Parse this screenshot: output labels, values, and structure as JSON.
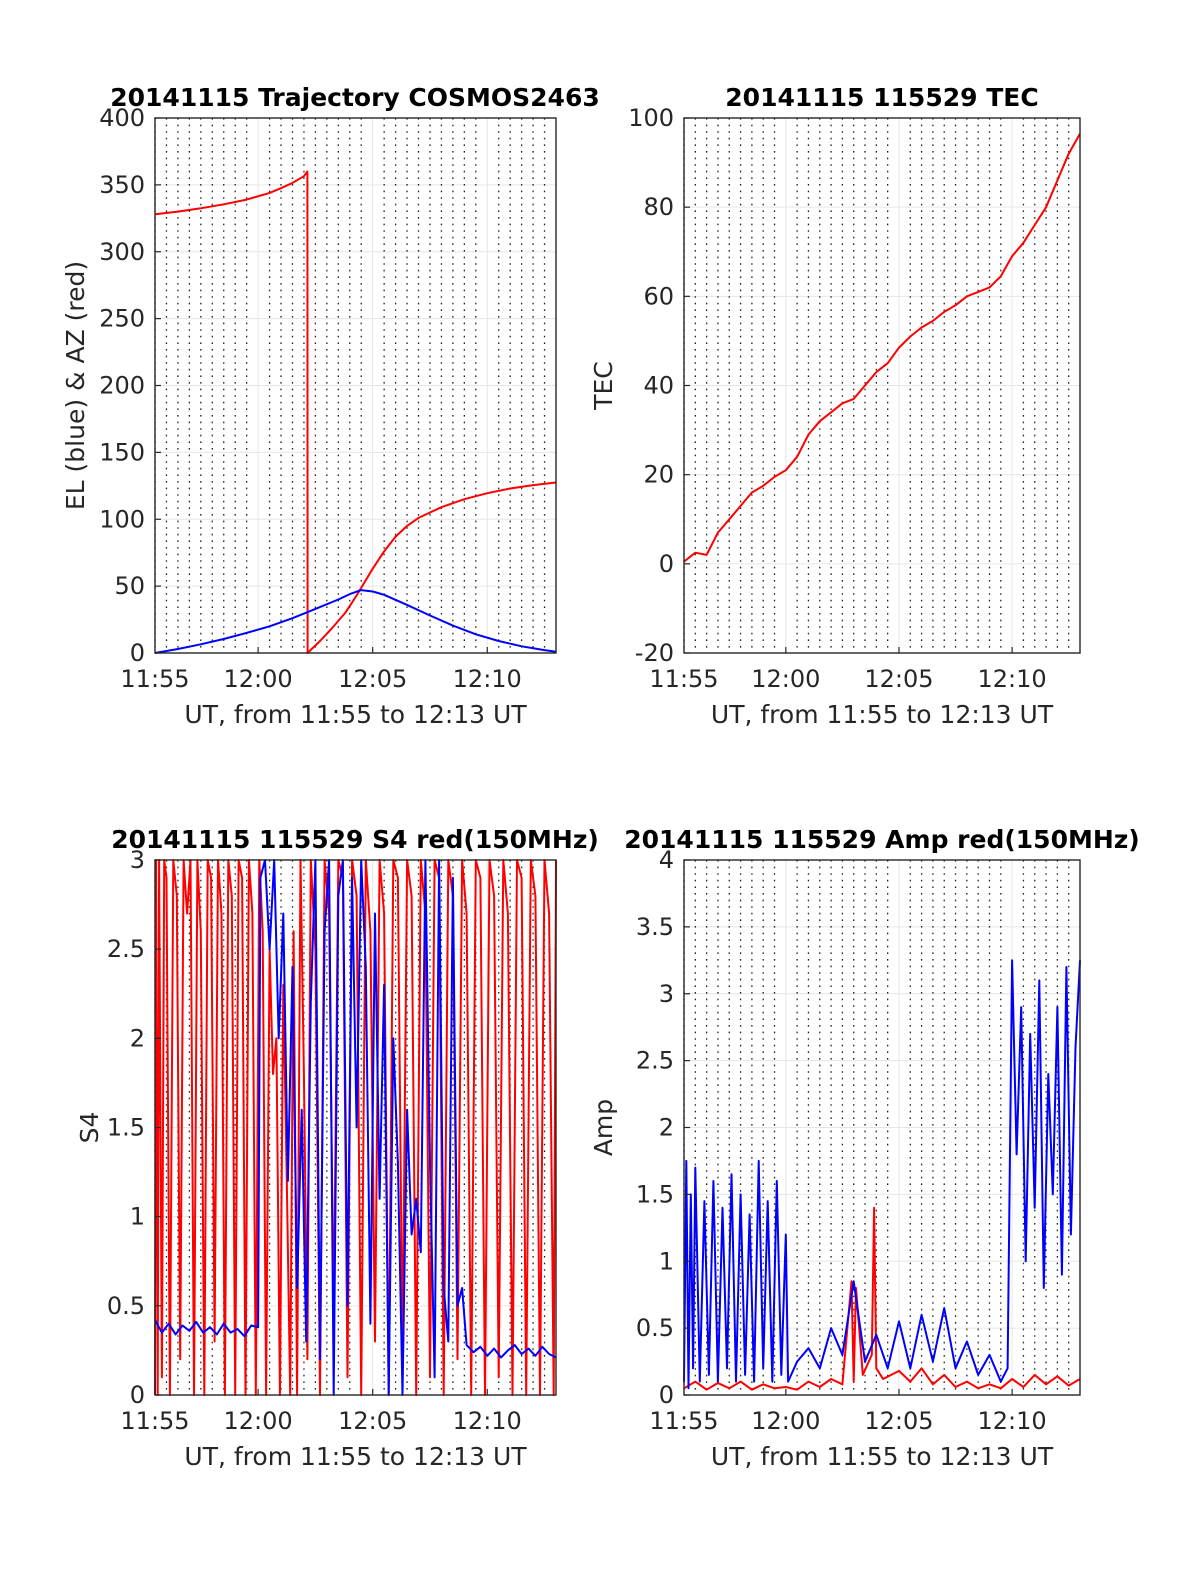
{
  "chart_data": [
    {
      "type": "line",
      "title": "20141115 Trajectory COSMOS2463",
      "xlabel": "UT, from 11:55 to 12:13 UT",
      "ylabel": "EL (blue) & AZ (red)",
      "xlim_min": [
        715.5,
        733.0
      ],
      "ylim": [
        0,
        400
      ],
      "xticks_min": [
        715,
        720,
        725,
        730
      ],
      "xtick_labels": [
        "11:55",
        "12:00",
        "12:05",
        "12:10"
      ],
      "yticks": [
        0,
        50,
        100,
        150,
        200,
        250,
        300,
        350,
        400
      ],
      "ytick_labels": [
        "0",
        "50",
        "100",
        "150",
        "200",
        "250",
        "300",
        "350",
        "400"
      ],
      "grid": true,
      "series": [
        {
          "color": "#ff0000",
          "x_min": [
            715.5,
            716.5,
            717.5,
            718.5,
            719.5,
            720.5,
            721.0,
            721.5,
            722.0,
            722.15,
            722.16,
            722.7,
            723.2,
            723.8,
            724.3,
            725.0,
            725.5,
            726.0,
            726.5,
            727.0,
            728.0,
            729.0,
            730.0,
            731.0,
            732.0,
            733.0
          ],
          "values": [
            328,
            330,
            332.5,
            335.5,
            339,
            344,
            347.5,
            351.5,
            356.5,
            360,
            0,
            9,
            18,
            30,
            43,
            63,
            76,
            87,
            95,
            101,
            109,
            115,
            119.5,
            123,
            125.5,
            127.5
          ]
        },
        {
          "color": "#0000ff",
          "x_min": [
            715.5,
            716.5,
            717.5,
            718.5,
            719.5,
            720.5,
            721.5,
            722.5,
            723.5,
            724.0,
            724.5,
            725.0,
            725.5,
            726.5,
            727.5,
            728.5,
            729.5,
            730.5,
            731.5,
            732.5,
            733.0
          ],
          "values": [
            0,
            3,
            6.5,
            10.5,
            15,
            20,
            26,
            33,
            40,
            44,
            47,
            46,
            43.5,
            36,
            28,
            20.5,
            14,
            9,
            5,
            2.2,
            1
          ]
        }
      ]
    },
    {
      "type": "line",
      "title": "20141115 115529 TEC",
      "xlabel": "UT, from 11:55 to 12:13 UT",
      "ylabel": "TEC",
      "xlim_min": [
        715.5,
        733.0
      ],
      "ylim": [
        -20,
        100
      ],
      "xticks_min": [
        715,
        720,
        725,
        730
      ],
      "xtick_labels": [
        "11:55",
        "12:00",
        "12:05",
        "12:10"
      ],
      "yticks": [
        -20,
        0,
        20,
        40,
        60,
        80,
        100
      ],
      "ytick_labels": [
        "-20",
        "0",
        "20",
        "40",
        "60",
        "80",
        "100"
      ],
      "grid": true,
      "series": [
        {
          "color": "#ff0000",
          "x_min": [
            715.5,
            716.0,
            716.5,
            717.0,
            717.5,
            718.0,
            718.5,
            719.0,
            719.5,
            720.0,
            720.5,
            721.0,
            721.5,
            722.0,
            722.5,
            723.0,
            723.5,
            724.0,
            724.5,
            725.0,
            725.5,
            726.0,
            726.5,
            727.0,
            727.5,
            728.0,
            728.5,
            729.0,
            729.5,
            730.0,
            730.5,
            731.0,
            731.5,
            732.0,
            732.5,
            733.0
          ],
          "values": [
            0.5,
            2.5,
            2.0,
            7.0,
            10.0,
            13.0,
            16.0,
            17.5,
            19.5,
            21.0,
            24.0,
            29.0,
            32.0,
            34.0,
            36.0,
            37.0,
            40.0,
            43.0,
            45.0,
            48.5,
            51.0,
            53.0,
            54.5,
            56.5,
            58.0,
            60.0,
            61.0,
            62.0,
            64.5,
            69.0,
            72.0,
            76.0,
            80.0,
            86.0,
            92.0,
            96.5
          ]
        }
      ]
    },
    {
      "type": "line",
      "title": "20141115 115529 S4 red(150MHz)",
      "xlabel": "UT, from 11:55 to 12:13 UT",
      "ylabel": "S4",
      "xlim_min": [
        715.5,
        733.0
      ],
      "ylim": [
        0,
        3
      ],
      "xticks_min": [
        715,
        720,
        725,
        730
      ],
      "xtick_labels": [
        "11:55",
        "12:00",
        "12:05",
        "12:10"
      ],
      "yticks": [
        0,
        0.5,
        1,
        1.5,
        2,
        2.5,
        3
      ],
      "ytick_labels": [
        "0",
        "0.5",
        "1",
        "1.5",
        "2",
        "2.5",
        "3"
      ],
      "grid": true,
      "series": [
        {
          "color": "#ff0000",
          "x_min": [
            715.5,
            715.55,
            715.62,
            715.68,
            715.8,
            715.9,
            716.0,
            716.15,
            716.3,
            716.45,
            716.6,
            716.75,
            716.9,
            717.05,
            717.2,
            717.35,
            717.5,
            717.65,
            717.8,
            717.95,
            718.1,
            718.25,
            718.4,
            718.55,
            718.7,
            718.85,
            719.0,
            719.15,
            719.3,
            719.45,
            719.6,
            719.75,
            719.9,
            720.05,
            720.2,
            720.35,
            720.5,
            720.65,
            720.8,
            720.95,
            721.1,
            721.25,
            721.4,
            721.55,
            721.7,
            721.85,
            722.0,
            722.15,
            722.3,
            722.5,
            722.7,
            722.9,
            723.1,
            723.3,
            723.5,
            723.7,
            723.9,
            724.1,
            724.3,
            724.5,
            724.7,
            724.9,
            725.1,
            725.3,
            725.5,
            725.7,
            725.9,
            726.1,
            726.3,
            726.5,
            726.7,
            726.9,
            727.1,
            727.3,
            727.5,
            727.7,
            727.9,
            728.1,
            728.3,
            728.5,
            728.7,
            728.9,
            729.1,
            729.3,
            729.5,
            729.7,
            729.9,
            730.1,
            730.3,
            730.5,
            730.7,
            730.9,
            731.1,
            731.3,
            731.5,
            731.7,
            731.9,
            732.1,
            732.3,
            732.5,
            732.7,
            732.9,
            733.0
          ],
          "values": [
            0,
            3,
            0,
            3,
            0.1,
            3,
            2.9,
            0,
            3,
            2.8,
            0.2,
            3,
            2.7,
            3,
            0,
            3,
            2.6,
            0,
            3,
            2.9,
            0.3,
            3,
            2.7,
            0,
            3,
            2.8,
            0,
            3,
            2.9,
            0,
            3,
            2.7,
            0,
            3,
            2.6,
            0,
            2.5,
            1.8,
            2.0,
            0,
            2.3,
            1.2,
            0,
            2.6,
            0,
            3,
            1.8,
            0.2,
            3,
            2.5,
            0,
            3,
            2.7,
            0.4,
            3,
            2.9,
            0.1,
            3,
            2.8,
            0,
            3,
            2.6,
            0.3,
            3,
            2.7,
            0,
            3,
            2.9,
            0.2,
            3,
            2.8,
            0,
            3,
            2.7,
            0.1,
            3,
            2.9,
            0,
            3,
            2.8,
            0.2,
            3,
            2.7,
            0,
            3,
            2.9,
            0,
            3,
            2.8,
            0.1,
            3,
            2.7,
            0,
            3,
            2.9,
            0,
            3,
            2.8,
            0,
            3,
            2.7,
            0,
            3
          ]
        },
        {
          "color": "#0000ff",
          "x_min": [
            715.5,
            715.8,
            716.1,
            716.4,
            716.7,
            717.0,
            717.3,
            717.6,
            717.9,
            718.2,
            718.5,
            718.8,
            719.1,
            719.4,
            719.7,
            720.0,
            720.1,
            720.3,
            720.5,
            720.7,
            720.9,
            721.1,
            721.3,
            721.5,
            721.7,
            721.9,
            722.1,
            722.3,
            722.5,
            722.7,
            722.9,
            723.1,
            723.3,
            723.5,
            723.7,
            723.9,
            724.1,
            724.3,
            724.5,
            724.7,
            724.9,
            725.1,
            725.3,
            725.5,
            725.7,
            725.9,
            726.1,
            726.3,
            726.5,
            726.7,
            726.9,
            727.1,
            727.3,
            727.5,
            727.7,
            727.9,
            728.1,
            728.3,
            728.5,
            728.7,
            728.9,
            729.1,
            729.4,
            729.7,
            730.0,
            730.3,
            730.6,
            730.9,
            731.2,
            731.5,
            731.8,
            732.1,
            732.4,
            732.7,
            733.0
          ],
          "values": [
            0.42,
            0.35,
            0.4,
            0.34,
            0.39,
            0.36,
            0.41,
            0.35,
            0.38,
            0.34,
            0.4,
            0.35,
            0.37,
            0.33,
            0.39,
            0.38,
            2.9,
            3.0,
            2.5,
            3.0,
            2.0,
            2.7,
            1.2,
            2.4,
            0.6,
            1.6,
            0.3,
            2.2,
            3.0,
            0.2,
            2.6,
            3.0,
            0.0,
            2.8,
            3.0,
            0.5,
            2.9,
            1.5,
            3.0,
            2.4,
            0.4,
            2.7,
            1.1,
            2.3,
            0.0,
            2.0,
            1.3,
            0.0,
            1.6,
            0.9,
            1.1,
            0.8,
            3.0,
            1.3,
            0.1,
            3.0,
            0.6,
            0.3,
            2.9,
            0.5,
            0.6,
            0.28,
            0.24,
            0.27,
            0.22,
            0.26,
            0.21,
            0.25,
            0.28,
            0.23,
            0.26,
            0.22,
            0.27,
            0.23,
            0.21
          ]
        }
      ]
    },
    {
      "type": "line",
      "title": "20141115 115529 Amp red(150MHz)",
      "xlabel": "UT, from 11:55 to 12:13 UT",
      "ylabel": "Amp",
      "xlim_min": [
        715.5,
        733.0
      ],
      "ylim": [
        0,
        4
      ],
      "xticks_min": [
        715,
        720,
        725,
        730
      ],
      "xtick_labels": [
        "11:55",
        "12:00",
        "12:05",
        "12:10"
      ],
      "yticks": [
        0,
        0.5,
        1,
        1.5,
        2,
        2.5,
        3,
        3.5,
        4
      ],
      "ytick_labels": [
        "0",
        "0.5",
        "1",
        "1.5",
        "2",
        "2.5",
        "3",
        "3.5",
        "4"
      ],
      "grid": true,
      "series": [
        {
          "color": "#ff0000",
          "x_min": [
            715.5,
            716.0,
            716.5,
            717.0,
            717.5,
            718.0,
            718.5,
            719.0,
            719.5,
            720.0,
            720.5,
            721.0,
            721.5,
            722.0,
            722.5,
            722.9,
            723.0,
            723.1,
            723.4,
            723.8,
            723.9,
            724.0,
            724.3,
            725.0,
            725.5,
            726.0,
            726.5,
            727.0,
            727.5,
            728.0,
            728.5,
            729.0,
            729.5,
            730.0,
            730.5,
            731.0,
            731.5,
            732.0,
            732.5,
            733.0
          ],
          "values": [
            0.05,
            0.1,
            0.04,
            0.09,
            0.05,
            0.1,
            0.04,
            0.08,
            0.05,
            0.06,
            0.04,
            0.1,
            0.06,
            0.12,
            0.08,
            0.85,
            0.1,
            0.8,
            0.15,
            0.3,
            1.4,
            0.2,
            0.12,
            0.18,
            0.1,
            0.2,
            0.08,
            0.15,
            0.06,
            0.1,
            0.05,
            0.08,
            0.05,
            0.12,
            0.06,
            0.15,
            0.08,
            0.14,
            0.07,
            0.12
          ]
        },
        {
          "color": "#0000ff",
          "x_min": [
            715.5,
            715.6,
            715.7,
            715.8,
            715.9,
            716.0,
            716.2,
            716.4,
            716.6,
            716.8,
            717.0,
            717.2,
            717.4,
            717.6,
            717.8,
            718.0,
            718.2,
            718.4,
            718.6,
            718.8,
            719.0,
            719.2,
            719.4,
            719.6,
            719.8,
            720.0,
            720.1,
            720.5,
            721.0,
            721.5,
            722.0,
            722.5,
            723.0,
            723.5,
            724.0,
            724.5,
            725.0,
            725.5,
            726.0,
            726.5,
            727.0,
            727.5,
            728.0,
            728.5,
            729.0,
            729.5,
            729.8,
            730.0,
            730.2,
            730.4,
            730.6,
            730.8,
            731.0,
            731.2,
            731.4,
            731.6,
            731.8,
            732.0,
            732.2,
            732.4,
            732.6,
            732.8,
            733.0
          ],
          "values": [
            0.1,
            1.75,
            0.05,
            1.5,
            0.2,
            1.7,
            0.1,
            1.45,
            0.15,
            1.6,
            0.1,
            1.4,
            0.2,
            1.65,
            0.1,
            1.5,
            0.15,
            1.35,
            0.1,
            1.75,
            0.2,
            1.45,
            0.1,
            1.6,
            0.15,
            1.2,
            0.1,
            0.25,
            0.35,
            0.2,
            0.5,
            0.3,
            0.85,
            0.25,
            0.45,
            0.2,
            0.55,
            0.2,
            0.6,
            0.25,
            0.65,
            0.2,
            0.4,
            0.15,
            0.3,
            0.1,
            0.2,
            3.25,
            1.8,
            2.9,
            1.0,
            2.7,
            1.4,
            3.1,
            0.8,
            2.4,
            1.5,
            2.9,
            0.9,
            3.2,
            1.2,
            2.6,
            3.25
          ]
        }
      ]
    }
  ]
}
